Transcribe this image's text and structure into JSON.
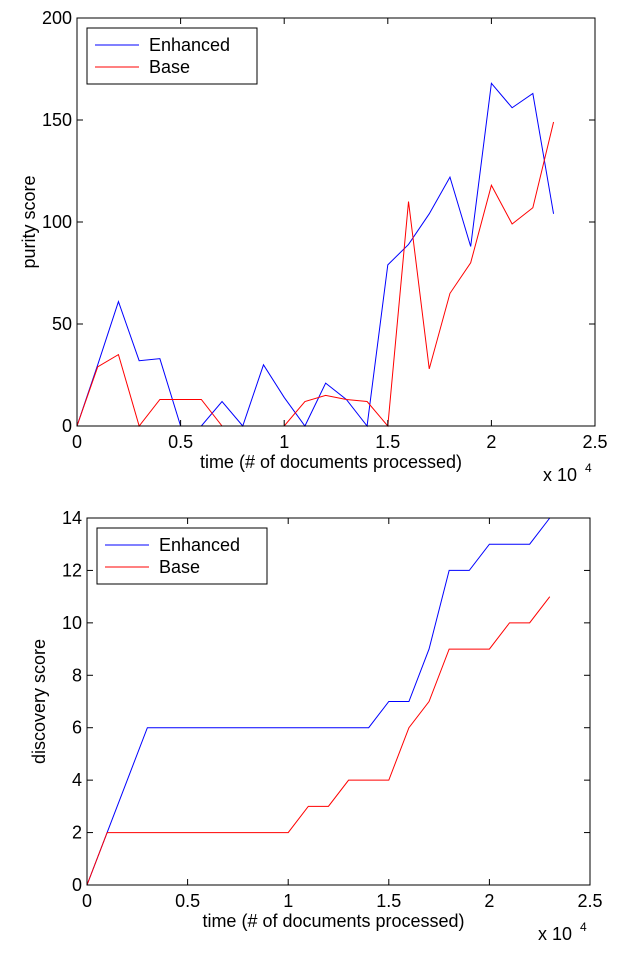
{
  "chart_data": [
    {
      "type": "line",
      "xlabel": "time (# of documents processed)",
      "ylabel": "purity score",
      "x_multiplier": "x 10",
      "x_multiplier_exponent": "4",
      "x": [
        0,
        0.1,
        0.2,
        0.3,
        0.4,
        0.5,
        0.6,
        0.7,
        0.8,
        0.9,
        1.0,
        1.1,
        1.2,
        1.3,
        1.4,
        1.5,
        1.6,
        1.7,
        1.8,
        1.9,
        2.0,
        2.1,
        2.2,
        2.3
      ],
      "series": [
        {
          "name": "Enhanced",
          "color": "#0000ff",
          "values": [
            0,
            30,
            61,
            32,
            33,
            0,
            0,
            12,
            0,
            30,
            14,
            0,
            21,
            13,
            0,
            79,
            89,
            104,
            122,
            88,
            168,
            156,
            163,
            104
          ]
        },
        {
          "name": "Base",
          "color": "#ff0000",
          "values": [
            0,
            29,
            35,
            0,
            13,
            13,
            13,
            0,
            0,
            0,
            0,
            12,
            15,
            13,
            12,
            0,
            110,
            28,
            65,
            80,
            118,
            99,
            107,
            149
          ]
        }
      ],
      "xlim": [
        0,
        2.5
      ],
      "xticks": [
        0,
        0.5,
        1,
        1.5,
        2,
        2.5
      ],
      "ylim": [
        0,
        200
      ],
      "yticks": [
        0,
        50,
        100,
        150,
        200
      ],
      "grid": false,
      "legend": "upper left"
    },
    {
      "type": "line",
      "xlabel": "time (# of documents processed)",
      "ylabel": "discovery score",
      "x_multiplier": "x 10",
      "x_multiplier_exponent": "4",
      "x": [
        0,
        0.1,
        0.2,
        0.3,
        0.4,
        0.5,
        0.6,
        0.7,
        0.8,
        0.9,
        1.0,
        1.1,
        1.2,
        1.3,
        1.4,
        1.5,
        1.6,
        1.7,
        1.8,
        1.9,
        2.0,
        2.1,
        2.2,
        2.3
      ],
      "series": [
        {
          "name": "Enhanced",
          "color": "#0000ff",
          "values": [
            0,
            2,
            4,
            6,
            6,
            6,
            6,
            6,
            6,
            6,
            6,
            6,
            6,
            6,
            6,
            7,
            7,
            9,
            12,
            12,
            13,
            13,
            13,
            14
          ]
        },
        {
          "name": "Base",
          "color": "#ff0000",
          "values": [
            0,
            2,
            2,
            2,
            2,
            2,
            2,
            2,
            2,
            2,
            2,
            3,
            3,
            4,
            4,
            4,
            6,
            7,
            9,
            9,
            9,
            10,
            10,
            11
          ]
        }
      ],
      "xlim": [
        0,
        2.5
      ],
      "xticks": [
        0,
        0.5,
        1,
        1.5,
        2,
        2.5
      ],
      "ylim": [
        0,
        14
      ],
      "yticks": [
        0,
        2,
        4,
        6,
        8,
        10,
        12,
        14
      ],
      "grid": false,
      "legend": "upper left"
    }
  ]
}
